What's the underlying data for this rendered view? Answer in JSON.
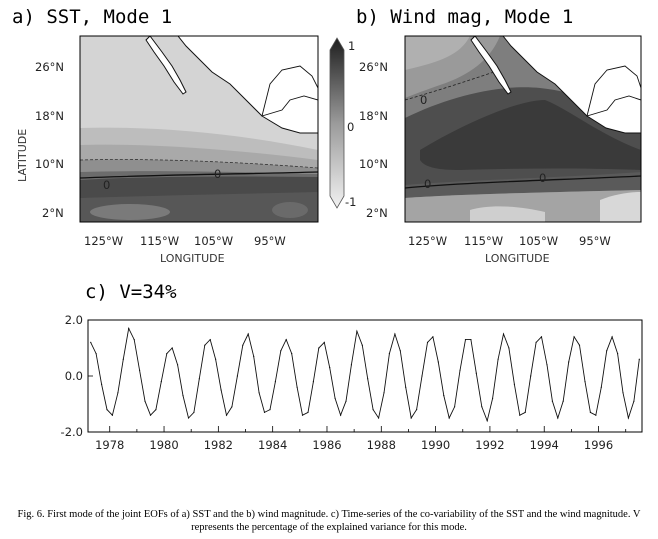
{
  "colors": {
    "shade_light": "#d2d2d2",
    "shade_mid": "#8a8a8a",
    "shade_dark": "#3a3a3a",
    "line": "#111111"
  },
  "panel_a": {
    "title": "a) SST, Mode 1",
    "lat_ticks": [
      "26°N",
      "18°N",
      "10°N",
      "2°N"
    ],
    "lon_ticks": [
      "125°W",
      "115°W",
      "105°W",
      "95°W"
    ],
    "xlabel": "LONGITUDE",
    "ylabel": "LATITUDE",
    "contour_label": "0",
    "colorbar": {
      "max_label": "1",
      "mid_label": "0",
      "min_label": "-1"
    }
  },
  "panel_b": {
    "title": "b) Wind mag, Mode 1",
    "lat_ticks": [
      "26°N",
      "18°N",
      "10°N",
      "2°N"
    ],
    "lon_ticks": [
      "125°W",
      "115°W",
      "105°W",
      "95°W"
    ],
    "xlabel": "LONGITUDE",
    "contour_label": "0"
  },
  "chart_data": {
    "type": "line",
    "title": "c) V=34%",
    "xlabel": "",
    "ylabel": "",
    "xlim": [
      1977.2,
      1997.6
    ],
    "ylim": [
      -2.0,
      2.0
    ],
    "yticks": [
      "2.0",
      "0.0",
      "-2.0"
    ],
    "xticks": [
      "1978",
      "1980",
      "1982",
      "1984",
      "1986",
      "1988",
      "1990",
      "1992",
      "1994",
      "1996"
    ],
    "x": [
      1977.3,
      1977.5,
      1977.7,
      1977.9,
      1978.1,
      1978.3,
      1978.5,
      1978.7,
      1978.9,
      1979.1,
      1979.3,
      1979.5,
      1979.7,
      1979.9,
      1980.1,
      1980.3,
      1980.5,
      1980.7,
      1980.9,
      1981.1,
      1981.3,
      1981.5,
      1981.7,
      1981.9,
      1982.1,
      1982.3,
      1982.5,
      1982.7,
      1982.9,
      1983.1,
      1983.3,
      1983.5,
      1983.7,
      1983.9,
      1984.1,
      1984.3,
      1984.5,
      1984.7,
      1984.9,
      1985.1,
      1985.3,
      1985.5,
      1985.7,
      1985.9,
      1986.1,
      1986.3,
      1986.5,
      1986.7,
      1986.9,
      1987.1,
      1987.3,
      1987.5,
      1987.7,
      1987.9,
      1988.1,
      1988.3,
      1988.5,
      1988.7,
      1988.9,
      1989.1,
      1989.3,
      1989.5,
      1989.7,
      1989.9,
      1990.1,
      1990.3,
      1990.5,
      1990.7,
      1990.9,
      1991.1,
      1991.3,
      1991.5,
      1991.7,
      1991.9,
      1992.1,
      1992.3,
      1992.5,
      1992.7,
      1992.9,
      1993.1,
      1993.3,
      1993.5,
      1993.7,
      1993.9,
      1994.1,
      1994.3,
      1994.5,
      1994.7,
      1994.9,
      1995.1,
      1995.3,
      1995.5,
      1995.7,
      1995.9,
      1996.1,
      1996.3,
      1996.5,
      1996.7,
      1996.9,
      1997.1,
      1997.3,
      1997.5
    ],
    "values": [
      1.2,
      0.8,
      -0.3,
      -1.2,
      -1.4,
      -0.6,
      0.6,
      1.7,
      1.3,
      0.2,
      -0.9,
      -1.4,
      -1.2,
      -0.2,
      0.8,
      1.0,
      0.4,
      -0.7,
      -1.5,
      -1.3,
      -0.1,
      1.1,
      1.3,
      0.6,
      -0.5,
      -1.4,
      -1.1,
      0.0,
      1.1,
      1.5,
      0.7,
      -0.6,
      -1.3,
      -1.2,
      -0.2,
      0.9,
      1.3,
      0.8,
      -0.4,
      -1.4,
      -1.3,
      -0.2,
      1.0,
      1.2,
      0.3,
      -0.8,
      -1.4,
      -0.9,
      0.4,
      1.6,
      1.1,
      -0.1,
      -1.2,
      -1.5,
      -0.6,
      0.8,
      1.5,
      0.9,
      -0.4,
      -1.5,
      -1.2,
      0.0,
      1.2,
      1.4,
      0.5,
      -0.7,
      -1.5,
      -1.1,
      0.2,
      1.3,
      1.3,
      0.1,
      -1.1,
      -1.6,
      -0.8,
      0.6,
      1.5,
      1.0,
      -0.3,
      -1.4,
      -1.3,
      0.0,
      1.2,
      1.4,
      0.4,
      -0.9,
      -1.5,
      -0.9,
      0.5,
      1.4,
      1.1,
      -0.2,
      -1.3,
      -1.4,
      -0.4,
      0.9,
      1.4,
      0.8,
      -0.6,
      -1.5,
      -0.9,
      0.6
    ]
  },
  "caption": "Fig. 6. First mode of the joint EOFs of a) SST and the b) wind magnitude. c) Time-series of the co-variability of the SST and the wind magnitude. V represents the percentage of the explained variance for this mode."
}
